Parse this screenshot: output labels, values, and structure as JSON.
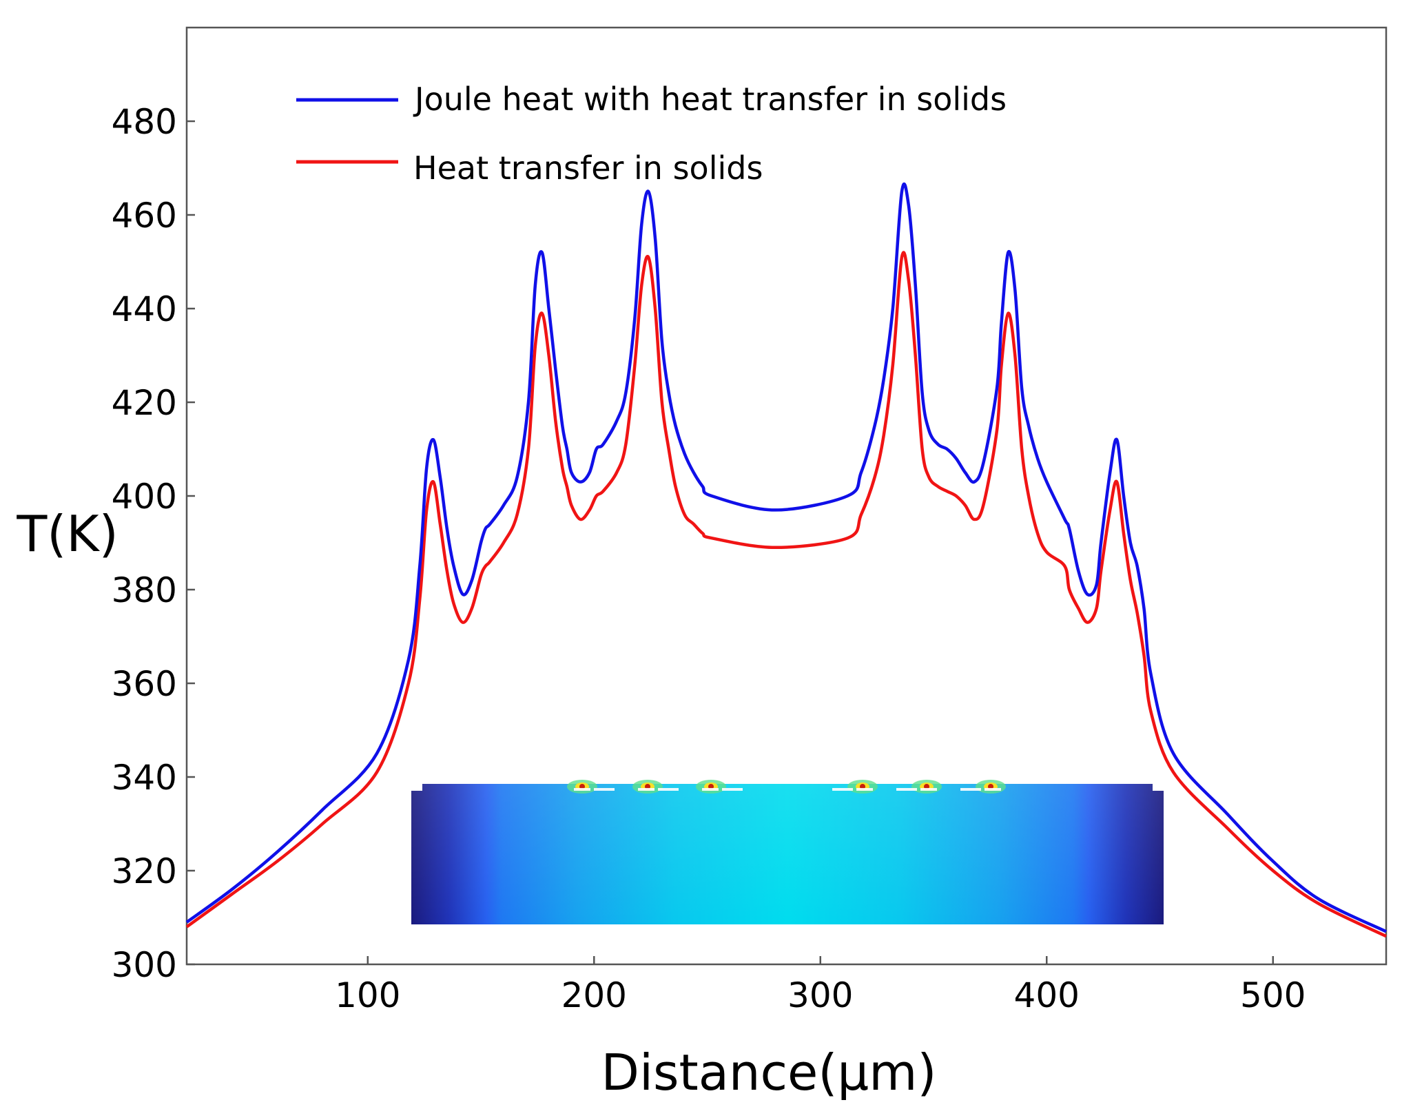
{
  "chart_data": {
    "type": "line",
    "title": "",
    "xlabel": "Distance(μm)",
    "ylabel": "T(K)",
    "xlim": [
      20,
      550
    ],
    "ylim": [
      300,
      500
    ],
    "xticks": [
      100,
      200,
      300,
      400,
      500
    ],
    "yticks": [
      300,
      320,
      340,
      360,
      380,
      400,
      420,
      440,
      460,
      480
    ],
    "legend_position": "top-left",
    "inset": {
      "type": "heatmap",
      "description_colormap": [
        "#1a1a8c",
        "#2a5ff5",
        "#13b5ef",
        "#00e6ee"
      ]
    },
    "colors": {
      "series1": "#1010e8",
      "series2": "#f01414"
    },
    "series": [
      {
        "name": "Joule heat with heat transfer in solids",
        "x": [
          20,
          40,
          60,
          80,
          104,
          118,
          123,
          126,
          129,
          132,
          135,
          138,
          142,
          146,
          150,
          152,
          154,
          160,
          166,
          171,
          174,
          177,
          180,
          183,
          186,
          188,
          190,
          194,
          198,
          201,
          204,
          210,
          214,
          218,
          221,
          224,
          227,
          230,
          233,
          236,
          240,
          244,
          248,
          252,
          280,
          312,
          318,
          324,
          328,
          332,
          336,
          339,
          342,
          345,
          348,
          352,
          356,
          360,
          364,
          368,
          372,
          378,
          380,
          383,
          386,
          389,
          392,
          396,
          400,
          408,
          410,
          414,
          418,
          422,
          424,
          428,
          431,
          434,
          437,
          440,
          443,
          446,
          456,
          480,
          500,
          520,
          550
        ],
        "values": [
          309,
          316,
          324,
          333,
          345,
          365,
          385,
          406,
          412,
          404,
          393,
          385,
          379,
          382,
          390,
          393,
          394,
          398,
          404,
          420,
          445,
          452,
          440,
          427,
          415,
          410,
          405,
          403,
          405,
          410,
          411,
          416,
          422,
          438,
          458,
          465,
          455,
          433,
          422,
          415,
          409,
          405,
          402,
          400,
          397,
          400,
          405,
          415,
          425,
          440,
          465,
          462,
          445,
          422,
          414,
          411,
          410,
          408,
          405,
          403,
          407,
          423,
          437,
          452,
          444,
          423,
          415,
          408,
          403,
          395,
          393,
          384,
          379,
          381,
          390,
          405,
          412,
          400,
          390,
          385,
          376,
          362,
          345,
          332,
          322,
          314,
          307
        ]
      },
      {
        "name": "Heat transfer in solids",
        "x": [
          20,
          40,
          60,
          80,
          104,
          118,
          123,
          126,
          129,
          132,
          135,
          138,
          142,
          146,
          150,
          152,
          154,
          160,
          166,
          171,
          174,
          177,
          180,
          183,
          186,
          188,
          190,
          194,
          198,
          201,
          204,
          210,
          214,
          218,
          221,
          224,
          227,
          230,
          233,
          236,
          240,
          244,
          248,
          252,
          280,
          312,
          318,
          324,
          328,
          332,
          336,
          339,
          342,
          345,
          348,
          352,
          356,
          360,
          364,
          368,
          372,
          378,
          380,
          383,
          386,
          389,
          392,
          396,
          400,
          408,
          410,
          414,
          418,
          422,
          424,
          428,
          431,
          434,
          437,
          440,
          443,
          446,
          456,
          480,
          500,
          520,
          550
        ],
        "values": [
          308,
          315,
          322,
          330,
          341,
          360,
          378,
          397,
          403,
          394,
          384,
          377,
          373,
          376,
          383,
          385,
          386,
          390,
          396,
          410,
          432,
          439,
          430,
          416,
          406,
          402,
          398,
          395,
          397,
          400,
          401,
          405,
          411,
          428,
          445,
          451,
          440,
          420,
          410,
          402,
          396,
          394,
          392,
          391,
          389,
          391,
          396,
          404,
          413,
          428,
          451,
          446,
          430,
          410,
          404,
          402,
          401,
          400,
          398,
          395,
          398,
          414,
          428,
          439,
          430,
          410,
          400,
          392,
          388,
          385,
          380,
          376,
          373,
          376,
          384,
          397,
          403,
          392,
          382,
          375,
          366,
          354,
          341,
          329,
          320,
          313,
          306
        ]
      }
    ]
  }
}
